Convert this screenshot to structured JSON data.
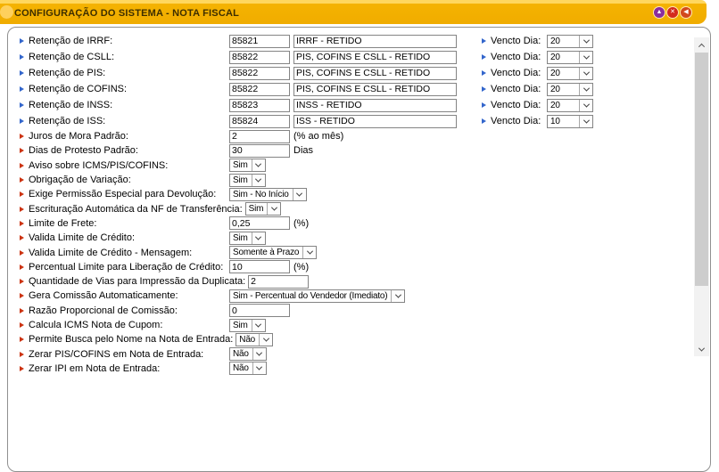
{
  "header": {
    "title": "CONFIGURAÇÃO DO SISTEMA - NOTA FISCAL",
    "buttons": [
      {
        "name": "scroll-top-button",
        "icon": "up-arrow-icon",
        "glyph": "▲",
        "color": "#8a2d9e"
      },
      {
        "name": "close-button",
        "icon": "close-icon",
        "glyph": "✕",
        "color": "#d42a1c"
      },
      {
        "name": "back-button",
        "icon": "back-arrow-icon",
        "glyph": "◀",
        "color": "#d2491d"
      }
    ]
  },
  "colors": {
    "header_gold": "#f5b301",
    "bullet_blue": "#3366cc",
    "bullet_red": "#cc3311"
  },
  "vencto_label": "Vencto Dia:",
  "retention_rows": [
    {
      "label": "Retenção de IRRF:",
      "code": "85821",
      "description": "IRRF - RETIDO",
      "vencto": "20"
    },
    {
      "label": "Retenção de CSLL:",
      "code": "85822",
      "description": "PIS, COFINS E CSLL - RETIDO",
      "vencto": "20"
    },
    {
      "label": "Retenção de PIS:",
      "code": "85822",
      "description": "PIS, COFINS E CSLL - RETIDO",
      "vencto": "20"
    },
    {
      "label": "Retenção de COFINS:",
      "code": "85822",
      "description": "PIS, COFINS E CSLL - RETIDO",
      "vencto": "20"
    },
    {
      "label": "Retenção de INSS:",
      "code": "85823",
      "description": "INSS - RETIDO",
      "vencto": "20"
    },
    {
      "label": "Retenção de ISS:",
      "code": "85824",
      "description": "ISS - RETIDO",
      "vencto": "10"
    }
  ],
  "option_rows": [
    {
      "label": "Juros de Mora Padrão:",
      "control": "input",
      "value": "2",
      "suffix": "(% ao mês)"
    },
    {
      "label": "Dias de Protesto Padrão:",
      "control": "input",
      "value": "30",
      "suffix": "Dias"
    },
    {
      "label": "Aviso sobre ICMS/PIS/COFINS:",
      "control": "select",
      "value": "Sim"
    },
    {
      "label": "Obrigação de Variação:",
      "control": "select",
      "value": "Sim"
    },
    {
      "label": "Exige Permissão Especial para Devolução:",
      "control": "select",
      "value": "Sim - No Início"
    },
    {
      "label": "Escrituração Automática da NF de Transferência:",
      "control": "select",
      "value": "Sim"
    },
    {
      "label": "Limite de Frete:",
      "control": "input",
      "value": "0,25",
      "suffix": "(%)"
    },
    {
      "label": "Valida Limite de Crédito:",
      "control": "select",
      "value": "Sim"
    },
    {
      "label": "Valida Limite de Crédito - Mensagem:",
      "control": "select",
      "value": "Somente à Prazo"
    },
    {
      "label": "Percentual Limite para Liberação de Crédito:",
      "control": "input",
      "value": "10",
      "suffix": "(%)"
    },
    {
      "label": "Quantidade de Vias para Impressão da Duplicata:",
      "control": "input",
      "value": "2"
    },
    {
      "label": "Gera Comissão Automaticamente:",
      "control": "select",
      "value": "Sim - Percentual do Vendedor (Imediato)"
    },
    {
      "label": "Razão Proporcional de Comissão:",
      "control": "input",
      "value": "0"
    },
    {
      "label": "Calcula ICMS Nota de Cupom:",
      "control": "select",
      "value": "Sim"
    },
    {
      "label": "Permite Busca pelo Nome na Nota de Entrada:",
      "control": "select",
      "value": "Não"
    },
    {
      "label": "Zerar PIS/COFINS em Nota de Entrada:",
      "control": "select",
      "value": "Não"
    },
    {
      "label": "Zerar IPI em Nota de Entrada:",
      "control": "select",
      "value": "Não",
      "partial": true
    }
  ]
}
